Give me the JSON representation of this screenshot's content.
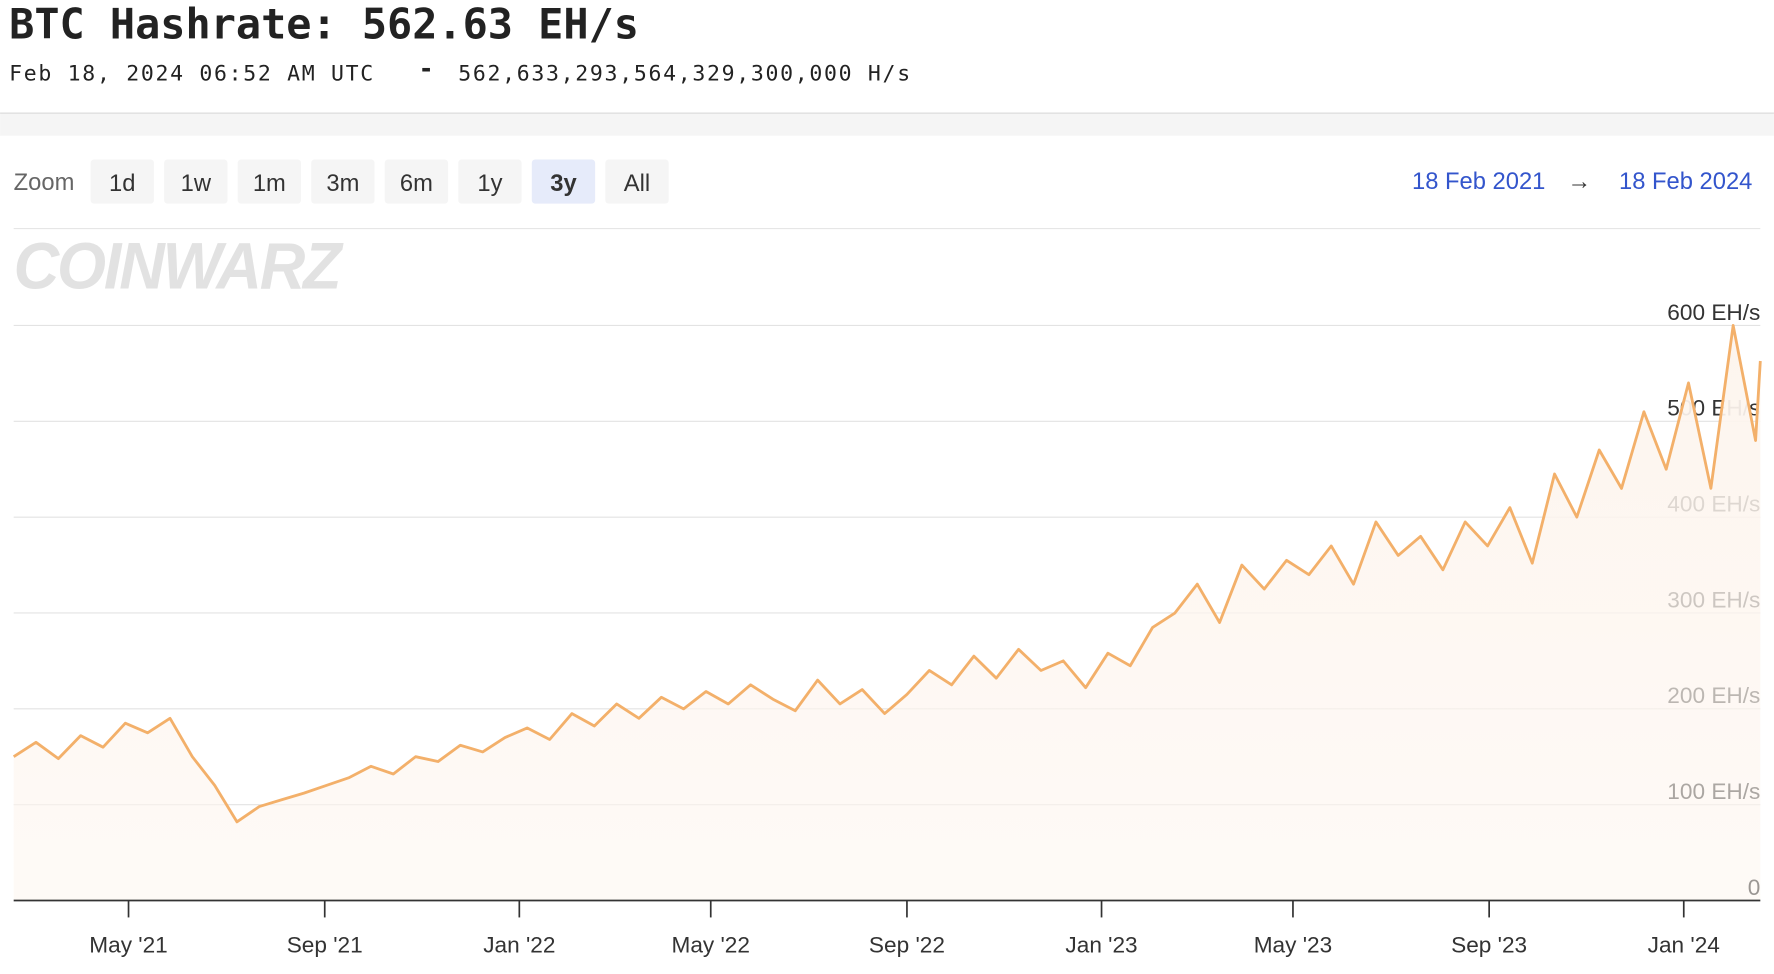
{
  "header": {
    "title": "BTC Hashrate: 562.63 EH/s",
    "timestamp": "Feb 18, 2024 06:52 AM UTC",
    "separator": "-",
    "raw_value": "562,633,293,564,329,300,000 H/s"
  },
  "toolbar": {
    "zoom_label": "Zoom",
    "buttons": [
      "1d",
      "1w",
      "1m",
      "3m",
      "6m",
      "1y",
      "3y",
      "All"
    ],
    "selected": "3y",
    "range_start": "18 Feb 2021",
    "range_arrow": "→",
    "range_end": "18 Feb 2024"
  },
  "watermark": "COINWARZ",
  "chart_data": {
    "type": "area",
    "x": [
      "2021-02-18",
      "2021-03-04",
      "2021-03-18",
      "2021-04-01",
      "2021-04-15",
      "2021-04-29",
      "2021-05-13",
      "2021-05-27",
      "2021-06-10",
      "2021-06-24",
      "2021-07-08",
      "2021-07-22",
      "2021-08-05",
      "2021-08-19",
      "2021-09-02",
      "2021-09-16",
      "2021-09-30",
      "2021-10-14",
      "2021-10-28",
      "2021-11-11",
      "2021-11-25",
      "2021-12-09",
      "2021-12-23",
      "2022-01-06",
      "2022-01-20",
      "2022-02-03",
      "2022-02-17",
      "2022-03-03",
      "2022-03-17",
      "2022-03-31",
      "2022-04-14",
      "2022-04-28",
      "2022-05-12",
      "2022-05-26",
      "2022-06-09",
      "2022-06-23",
      "2022-07-07",
      "2022-07-21",
      "2022-08-04",
      "2022-08-18",
      "2022-09-01",
      "2022-09-15",
      "2022-09-29",
      "2022-10-13",
      "2022-10-27",
      "2022-11-10",
      "2022-11-24",
      "2022-12-08",
      "2022-12-22",
      "2023-01-05",
      "2023-01-19",
      "2023-02-02",
      "2023-02-16",
      "2023-03-02",
      "2023-03-16",
      "2023-03-30",
      "2023-04-13",
      "2023-04-27",
      "2023-05-11",
      "2023-05-25",
      "2023-06-08",
      "2023-06-22",
      "2023-07-06",
      "2023-07-20",
      "2023-08-03",
      "2023-08-17",
      "2023-08-31",
      "2023-09-14",
      "2023-09-28",
      "2023-10-12",
      "2023-10-26",
      "2023-11-09",
      "2023-11-23",
      "2023-12-07",
      "2023-12-21",
      "2024-01-04",
      "2024-01-18",
      "2024-02-01",
      "2024-02-15",
      "2024-02-18"
    ],
    "series": [
      {
        "color": "#f3b06a",
        "fill": "#fdf5ee",
        "values": [
          150,
          165,
          148,
          172,
          160,
          185,
          175,
          190,
          150,
          120,
          82,
          98,
          105,
          112,
          120,
          128,
          140,
          132,
          150,
          145,
          162,
          155,
          170,
          180,
          168,
          195,
          182,
          205,
          190,
          212,
          200,
          218,
          205,
          225,
          210,
          198,
          230,
          205,
          220,
          195,
          215,
          240,
          225,
          255,
          232,
          262,
          240,
          250,
          222,
          258,
          245,
          285,
          300,
          330,
          290,
          350,
          325,
          355,
          340,
          370,
          330,
          395,
          360,
          380,
          345,
          395,
          370,
          410,
          352,
          445,
          400,
          470,
          430,
          510,
          450,
          540,
          430,
          600,
          480,
          563
        ]
      }
    ],
    "xlim": [
      "2021-02-18",
      "2024-02-18"
    ],
    "xticks": [
      {
        "value": "2021-05-01",
        "label": "May '21"
      },
      {
        "value": "2021-09-01",
        "label": "Sep '21"
      },
      {
        "value": "2022-01-01",
        "label": "Jan '22"
      },
      {
        "value": "2022-05-01",
        "label": "May '22"
      },
      {
        "value": "2022-09-01",
        "label": "Sep '22"
      },
      {
        "value": "2023-01-01",
        "label": "Jan '23"
      },
      {
        "value": "2023-05-01",
        "label": "May '23"
      },
      {
        "value": "2023-09-01",
        "label": "Sep '23"
      },
      {
        "value": "2024-01-01",
        "label": "Jan '24"
      }
    ],
    "ylim": [
      0,
      700
    ],
    "yticks": [
      0,
      {
        "value": 100,
        "label": "100 EH/s"
      },
      {
        "value": 200,
        "label": "200 EH/s"
      },
      {
        "value": 300,
        "label": "300 EH/s"
      },
      {
        "value": 400,
        "label": "400 EH/s"
      },
      {
        "value": 500,
        "label": "500 EH/s"
      },
      {
        "value": 600,
        "label": "600 EH/s"
      }
    ],
    "grid": true
  }
}
